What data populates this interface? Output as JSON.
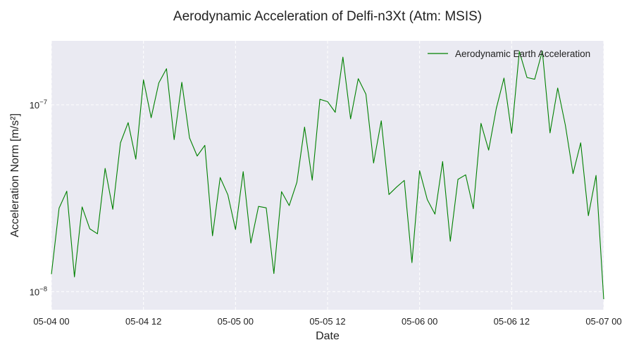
{
  "chart_data": {
    "type": "line",
    "title": "Aerodynamic Acceleration of Delfi-n3Xt (Atm: MSIS)",
    "xlabel": "Date",
    "ylabel": "Acceleration Norm [m/s²]",
    "yscale": "log",
    "ylim": [
      8e-09,
      2.2e-07
    ],
    "xlim": [
      "2024-05-04 00:00",
      "2024-05-07 00:00"
    ],
    "x_ticks": [
      "05-04 00",
      "05-04 12",
      "05-05 00",
      "05-05 12",
      "05-06 00",
      "05-06 12",
      "05-07 00"
    ],
    "x_tick_dates": [
      "2024-05-04 00:00",
      "2024-05-04 12:00",
      "2024-05-05 00:00",
      "2024-05-05 12:00",
      "2024-05-06 00:00",
      "2024-05-06 12:00",
      "2024-05-07 00:00"
    ],
    "y_ticks": [
      {
        "value": 1e-07,
        "base": "10",
        "exp": "−7"
      },
      {
        "value": 1e-08,
        "base": "10",
        "exp": "−8"
      }
    ],
    "grid": true,
    "legend_position": "top-right",
    "series": [
      {
        "name": "Aerodynamic Earth Acceleration",
        "color": "#008000",
        "x": [
          "2024-05-04 00:00",
          "2024-05-04 01:00",
          "2024-05-04 02:00",
          "2024-05-04 03:00",
          "2024-05-04 04:00",
          "2024-05-04 05:00",
          "2024-05-04 06:00",
          "2024-05-04 07:00",
          "2024-05-04 08:00",
          "2024-05-04 09:00",
          "2024-05-04 10:00",
          "2024-05-04 11:00",
          "2024-05-04 12:00",
          "2024-05-04 13:00",
          "2024-05-04 14:00",
          "2024-05-04 15:00",
          "2024-05-04 16:00",
          "2024-05-04 17:00",
          "2024-05-04 18:00",
          "2024-05-04 19:00",
          "2024-05-04 20:00",
          "2024-05-04 21:00",
          "2024-05-04 22:00",
          "2024-05-04 23:00",
          "2024-05-05 00:00",
          "2024-05-05 01:00",
          "2024-05-05 02:00",
          "2024-05-05 03:00",
          "2024-05-05 04:00",
          "2024-05-05 05:00",
          "2024-05-05 06:00",
          "2024-05-05 07:00",
          "2024-05-05 08:00",
          "2024-05-05 09:00",
          "2024-05-05 10:00",
          "2024-05-05 11:00",
          "2024-05-05 12:00",
          "2024-05-05 13:00",
          "2024-05-05 14:00",
          "2024-05-05 15:00",
          "2024-05-05 16:00",
          "2024-05-05 17:00",
          "2024-05-05 18:00",
          "2024-05-05 19:00",
          "2024-05-05 20:00",
          "2024-05-05 21:00",
          "2024-05-05 22:00",
          "2024-05-05 23:00",
          "2024-05-06 00:00",
          "2024-05-06 01:00",
          "2024-05-06 02:00",
          "2024-05-06 03:00",
          "2024-05-06 04:00",
          "2024-05-06 05:00",
          "2024-05-06 06:00",
          "2024-05-06 07:00",
          "2024-05-06 08:00",
          "2024-05-06 09:00",
          "2024-05-06 10:00",
          "2024-05-06 11:00",
          "2024-05-06 12:00",
          "2024-05-06 13:00",
          "2024-05-06 14:00",
          "2024-05-06 15:00",
          "2024-05-06 16:00",
          "2024-05-06 17:00",
          "2024-05-06 18:00",
          "2024-05-06 19:00",
          "2024-05-06 20:00",
          "2024-05-06 21:00",
          "2024-05-06 22:00",
          "2024-05-06 23:00",
          "2024-05-07 00:00"
        ],
        "y": [
          1.24e-08,
          2.8e-08,
          3.45e-08,
          1.2e-08,
          2.84e-08,
          2.17e-08,
          2.04e-08,
          4.57e-08,
          2.76e-08,
          6.26e-08,
          8.03e-08,
          5.12e-08,
          1.36e-07,
          8.53e-08,
          1.31e-07,
          1.56e-07,
          6.51e-08,
          1.32e-07,
          6.66e-08,
          5.32e-08,
          6.07e-08,
          1.99e-08,
          4.08e-08,
          3.3e-08,
          2.15e-08,
          4.39e-08,
          1.82e-08,
          2.86e-08,
          2.81e-08,
          1.25e-08,
          3.43e-08,
          2.89e-08,
          3.85e-08,
          7.6e-08,
          3.95e-08,
          1.07e-07,
          1.04e-07,
          9.12e-08,
          1.8e-07,
          8.41e-08,
          1.38e-07,
          1.14e-07,
          4.88e-08,
          8.21e-08,
          3.31e-08,
          3.63e-08,
          3.94e-08,
          1.43e-08,
          4.44e-08,
          3.11e-08,
          2.6e-08,
          4.97e-08,
          1.86e-08,
          3.99e-08,
          4.22e-08,
          2.78e-08,
          7.96e-08,
          5.72e-08,
          9.58e-08,
          1.39e-07,
          7.04e-08,
          1.93e-07,
          1.4e-07,
          1.37e-07,
          1.94e-07,
          7.07e-08,
          1.23e-07,
          7.78e-08,
          4.28e-08,
          6.26e-08,
          2.55e-08,
          4.19e-08,
          9.11e-09
        ]
      }
    ]
  }
}
